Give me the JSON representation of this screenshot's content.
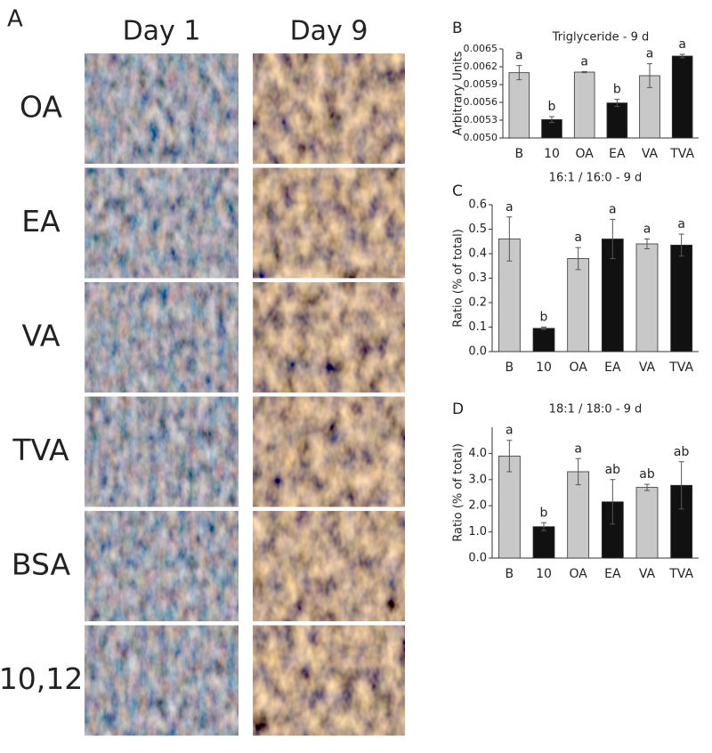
{
  "panel_a": {
    "label": "A",
    "columns": [
      "Day 1",
      "Day 9"
    ],
    "rows": [
      "OA",
      "EA",
      "VA",
      "TVA",
      "BSA",
      "10,12"
    ]
  },
  "chart_data": [
    {
      "type": "bar",
      "panel": "B",
      "title": "Triglyceride - 9 d",
      "y_label": "Arbitrary Units",
      "categories": [
        "B",
        "10",
        "OA",
        "EA",
        "VA",
        "TVA"
      ],
      "values": [
        0.0061,
        0.00531,
        0.00611,
        0.00559,
        0.00605,
        0.00638
      ],
      "errors": [
        0.00012,
        5e-05,
        1e-05,
        6e-05,
        0.0002,
        3e-05
      ],
      "annotations": [
        "a",
        "b",
        "a",
        "b",
        "a",
        "a"
      ],
      "colors": [
        "#c8c8c8",
        "#111111",
        "#c8c8c8",
        "#111111",
        "#c8c8c8",
        "#111111"
      ],
      "ylim": [
        0.005,
        0.0065
      ],
      "yticks": [
        {
          "value": 0.005,
          "label": "0.0050"
        },
        {
          "value": 0.0053,
          "label": "0.0053"
        },
        {
          "value": 0.0056,
          "label": "0.0056"
        },
        {
          "value": 0.0059,
          "label": "0.0059"
        },
        {
          "value": 0.0062,
          "label": "0.0062"
        },
        {
          "value": 0.0065,
          "label": "0.0065"
        }
      ]
    },
    {
      "type": "bar",
      "panel": "C",
      "title": "16:1 / 16:0 - 9 d",
      "y_label": "Ratio (% of total)",
      "categories": [
        "B",
        "10",
        "OA",
        "EA",
        "VA",
        "TVA"
      ],
      "values": [
        0.46,
        0.095,
        0.38,
        0.46,
        0.44,
        0.435
      ],
      "errors": [
        0.09,
        0.005,
        0.045,
        0.08,
        0.02,
        0.045
      ],
      "annotations": [
        "a",
        "b",
        "a",
        "a",
        "a",
        "a"
      ],
      "colors": [
        "#c8c8c8",
        "#111111",
        "#c8c8c8",
        "#111111",
        "#c8c8c8",
        "#111111"
      ],
      "ylim": [
        0,
        0.6
      ],
      "yticks": [
        {
          "value": 0,
          "label": "0.0"
        },
        0.1,
        0.2,
        0.3,
        0.4,
        0.5,
        0.6
      ]
    },
    {
      "type": "bar",
      "panel": "D",
      "title": "18:1 / 18:0 - 9 d",
      "y_label": "Ratio (% of total)",
      "categories": [
        "B",
        "10",
        "OA",
        "EA",
        "VA",
        "TVA"
      ],
      "values": [
        3.9,
        1.2,
        3.3,
        2.15,
        2.7,
        2.78
      ],
      "errors": [
        0.6,
        0.15,
        0.5,
        0.85,
        0.12,
        0.9
      ],
      "annotations": [
        "a",
        "b",
        "a",
        "ab",
        "ab",
        "ab"
      ],
      "colors": [
        "#c8c8c8",
        "#111111",
        "#c8c8c8",
        "#111111",
        "#c8c8c8",
        "#111111"
      ],
      "ylim": [
        0,
        5
      ],
      "yticks": [
        {
          "value": 0,
          "label": "0.0"
        },
        {
          "value": 1,
          "label": "1.0"
        },
        {
          "value": 2,
          "label": "2.0"
        },
        {
          "value": 3,
          "label": "3.0"
        },
        {
          "value": 4,
          "label": "4.0"
        }
      ]
    }
  ]
}
